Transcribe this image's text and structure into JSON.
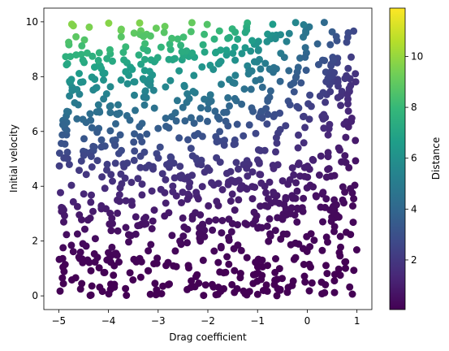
{
  "chart_data": {
    "type": "scatter",
    "title": "",
    "xlabel": "Drag coefficient",
    "ylabel": "Initial velocity",
    "xlim": [
      -5.3,
      1.3
    ],
    "ylim": [
      -0.5,
      10.5
    ],
    "x_ticks": [
      -5,
      -4,
      -3,
      -2,
      -1,
      0,
      1
    ],
    "y_ticks": [
      0,
      2,
      4,
      6,
      8,
      10
    ],
    "grid": false,
    "legend": "none",
    "n_points": 1000,
    "x_range": [
      -5,
      1
    ],
    "y_range": [
      0,
      10
    ],
    "color_formula": "distance = v^2 / (10 * (1 + exp(c)))",
    "colorbar": {
      "label": "Distance",
      "colormap": "viridis",
      "range": [
        0.05,
        11.9
      ],
      "ticks": [
        2,
        4,
        6,
        8,
        10
      ]
    },
    "colormap_stops": [
      "#440154",
      "#482878",
      "#3e4989",
      "#31688e",
      "#26828e",
      "#1f9e89",
      "#35b779",
      "#6ece58",
      "#b5de2b",
      "#fde725"
    ]
  }
}
